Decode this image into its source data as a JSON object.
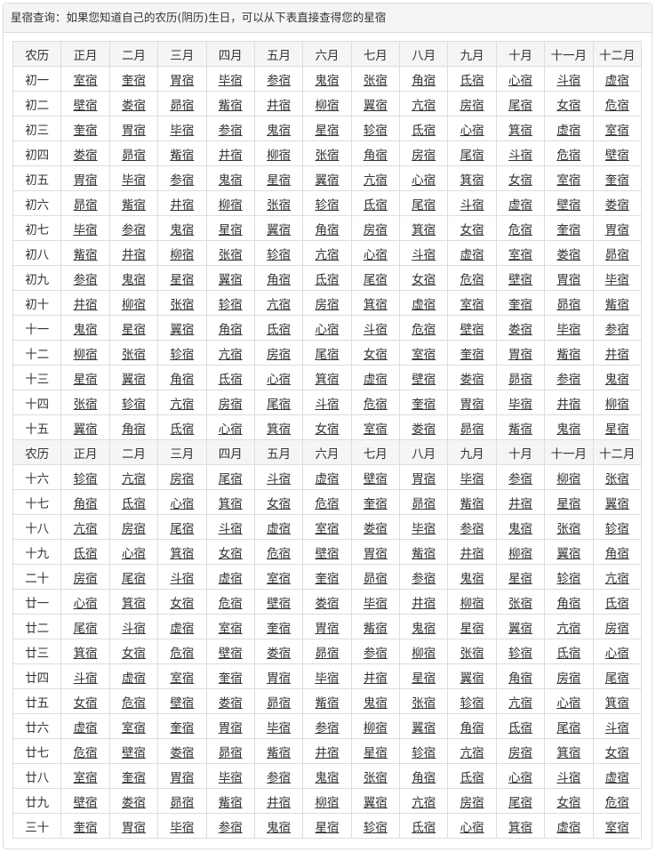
{
  "panel": {
    "title": "星宿查询：如果您知道自己的农历(阴历)生日，可以从下表直接查得您的星宿"
  },
  "table": {
    "header": [
      "农历",
      "正月",
      "二月",
      "三月",
      "四月",
      "五月",
      "六月",
      "七月",
      "八月",
      "九月",
      "十月",
      "十一月",
      "十二月"
    ],
    "rows": [
      {
        "day": "初一",
        "cells": [
          "室宿",
          "奎宿",
          "胃宿",
          "毕宿",
          "参宿",
          "鬼宿",
          "张宿",
          "角宿",
          "氐宿",
          "心宿",
          "斗宿",
          "虚宿"
        ]
      },
      {
        "day": "初二",
        "cells": [
          "壁宿",
          "娄宿",
          "昴宿",
          "觜宿",
          "井宿",
          "柳宿",
          "翼宿",
          "亢宿",
          "房宿",
          "尾宿",
          "女宿",
          "危宿"
        ]
      },
      {
        "day": "初三",
        "cells": [
          "奎宿",
          "胃宿",
          "毕宿",
          "参宿",
          "鬼宿",
          "星宿",
          "轸宿",
          "氐宿",
          "心宿",
          "箕宿",
          "虚宿",
          "室宿"
        ]
      },
      {
        "day": "初四",
        "cells": [
          "娄宿",
          "昴宿",
          "觜宿",
          "井宿",
          "柳宿",
          "张宿",
          "角宿",
          "房宿",
          "尾宿",
          "斗宿",
          "危宿",
          "壁宿"
        ]
      },
      {
        "day": "初五",
        "cells": [
          "胃宿",
          "毕宿",
          "参宿",
          "鬼宿",
          "星宿",
          "翼宿",
          "亢宿",
          "心宿",
          "箕宿",
          "女宿",
          "室宿",
          "奎宿"
        ]
      },
      {
        "day": "初六",
        "cells": [
          "昴宿",
          "觜宿",
          "井宿",
          "柳宿",
          "张宿",
          "轸宿",
          "氐宿",
          "尾宿",
          "斗宿",
          "虚宿",
          "壁宿",
          "娄宿"
        ]
      },
      {
        "day": "初七",
        "cells": [
          "毕宿",
          "参宿",
          "鬼宿",
          "星宿",
          "翼宿",
          "角宿",
          "房宿",
          "箕宿",
          "女宿",
          "危宿",
          "奎宿",
          "胃宿"
        ]
      },
      {
        "day": "初八",
        "cells": [
          "觜宿",
          "井宿",
          "柳宿",
          "张宿",
          "轸宿",
          "亢宿",
          "心宿",
          "斗宿",
          "虚宿",
          "室宿",
          "娄宿",
          "昴宿"
        ]
      },
      {
        "day": "初九",
        "cells": [
          "参宿",
          "鬼宿",
          "星宿",
          "翼宿",
          "角宿",
          "氐宿",
          "尾宿",
          "女宿",
          "危宿",
          "壁宿",
          "胃宿",
          "毕宿"
        ]
      },
      {
        "day": "初十",
        "cells": [
          "井宿",
          "柳宿",
          "张宿",
          "轸宿",
          "亢宿",
          "房宿",
          "箕宿",
          "虚宿",
          "室宿",
          "奎宿",
          "昴宿",
          "觜宿"
        ]
      },
      {
        "day": "十一",
        "cells": [
          "鬼宿",
          "星宿",
          "翼宿",
          "角宿",
          "氐宿",
          "心宿",
          "斗宿",
          "危宿",
          "壁宿",
          "娄宿",
          "毕宿",
          "参宿"
        ]
      },
      {
        "day": "十二",
        "cells": [
          "柳宿",
          "张宿",
          "轸宿",
          "亢宿",
          "房宿",
          "尾宿",
          "女宿",
          "室宿",
          "奎宿",
          "胃宿",
          "觜宿",
          "井宿"
        ]
      },
      {
        "day": "十三",
        "cells": [
          "星宿",
          "翼宿",
          "角宿",
          "氐宿",
          "心宿",
          "箕宿",
          "虚宿",
          "壁宿",
          "娄宿",
          "昴宿",
          "参宿",
          "鬼宿"
        ]
      },
      {
        "day": "十四",
        "cells": [
          "张宿",
          "轸宿",
          "亢宿",
          "房宿",
          "尾宿",
          "斗宿",
          "危宿",
          "奎宿",
          "胃宿",
          "毕宿",
          "井宿",
          "柳宿"
        ]
      },
      {
        "day": "十五",
        "cells": [
          "翼宿",
          "角宿",
          "氐宿",
          "心宿",
          "箕宿",
          "女宿",
          "室宿",
          "娄宿",
          "昴宿",
          "觜宿",
          "鬼宿",
          "星宿"
        ]
      },
      {
        "header": true
      },
      {
        "day": "十六",
        "cells": [
          "轸宿",
          "亢宿",
          "房宿",
          "尾宿",
          "斗宿",
          "虚宿",
          "壁宿",
          "胃宿",
          "毕宿",
          "参宿",
          "柳宿",
          "张宿"
        ]
      },
      {
        "day": "十七",
        "cells": [
          "角宿",
          "氐宿",
          "心宿",
          "箕宿",
          "女宿",
          "危宿",
          "奎宿",
          "昴宿",
          "觜宿",
          "井宿",
          "星宿",
          "翼宿"
        ]
      },
      {
        "day": "十八",
        "cells": [
          "亢宿",
          "房宿",
          "尾宿",
          "斗宿",
          "虚宿",
          "室宿",
          "娄宿",
          "毕宿",
          "参宿",
          "鬼宿",
          "张宿",
          "轸宿"
        ]
      },
      {
        "day": "十九",
        "cells": [
          "氐宿",
          "心宿",
          "箕宿",
          "女宿",
          "危宿",
          "壁宿",
          "胃宿",
          "觜宿",
          "井宿",
          "柳宿",
          "翼宿",
          "角宿"
        ]
      },
      {
        "day": "二十",
        "cells": [
          "房宿",
          "尾宿",
          "斗宿",
          "虚宿",
          "室宿",
          "奎宿",
          "昴宿",
          "参宿",
          "鬼宿",
          "星宿",
          "轸宿",
          "亢宿"
        ]
      },
      {
        "day": "廿一",
        "cells": [
          "心宿",
          "箕宿",
          "女宿",
          "危宿",
          "壁宿",
          "娄宿",
          "毕宿",
          "井宿",
          "柳宿",
          "张宿",
          "角宿",
          "氐宿"
        ]
      },
      {
        "day": "廿二",
        "cells": [
          "尾宿",
          "斗宿",
          "虚宿",
          "室宿",
          "奎宿",
          "胃宿",
          "觜宿",
          "鬼宿",
          "星宿",
          "翼宿",
          "亢宿",
          "房宿"
        ]
      },
      {
        "day": "廿三",
        "cells": [
          "箕宿",
          "女宿",
          "危宿",
          "壁宿",
          "娄宿",
          "昴宿",
          "参宿",
          "柳宿",
          "张宿",
          "轸宿",
          "氐宿",
          "心宿"
        ]
      },
      {
        "day": "廿四",
        "cells": [
          "斗宿",
          "虚宿",
          "室宿",
          "奎宿",
          "胃宿",
          "毕宿",
          "井宿",
          "星宿",
          "翼宿",
          "角宿",
          "房宿",
          "尾宿"
        ]
      },
      {
        "day": "廿五",
        "cells": [
          "女宿",
          "危宿",
          "壁宿",
          "娄宿",
          "昴宿",
          "觜宿",
          "鬼宿",
          "张宿",
          "轸宿",
          "亢宿",
          "心宿",
          "箕宿"
        ]
      },
      {
        "day": "廿六",
        "cells": [
          "虚宿",
          "室宿",
          "奎宿",
          "胃宿",
          "毕宿",
          "参宿",
          "柳宿",
          "翼宿",
          "角宿",
          "氐宿",
          "尾宿",
          "斗宿"
        ]
      },
      {
        "day": "廿七",
        "cells": [
          "危宿",
          "壁宿",
          "娄宿",
          "昴宿",
          "觜宿",
          "井宿",
          "星宿",
          "轸宿",
          "亢宿",
          "房宿",
          "箕宿",
          "女宿"
        ]
      },
      {
        "day": "廿八",
        "cells": [
          "室宿",
          "奎宿",
          "胃宿",
          "毕宿",
          "参宿",
          "鬼宿",
          "张宿",
          "角宿",
          "氐宿",
          "心宿",
          "斗宿",
          "虚宿"
        ]
      },
      {
        "day": "廿九",
        "cells": [
          "壁宿",
          "娄宿",
          "昴宿",
          "觜宿",
          "井宿",
          "柳宿",
          "翼宿",
          "亢宿",
          "房宿",
          "尾宿",
          "女宿",
          "危宿"
        ]
      },
      {
        "day": "三十",
        "cells": [
          "奎宿",
          "胃宿",
          "毕宿",
          "参宿",
          "鬼宿",
          "星宿",
          "轸宿",
          "氐宿",
          "心宿",
          "箕宿",
          "虚宿",
          "室宿"
        ]
      }
    ]
  }
}
